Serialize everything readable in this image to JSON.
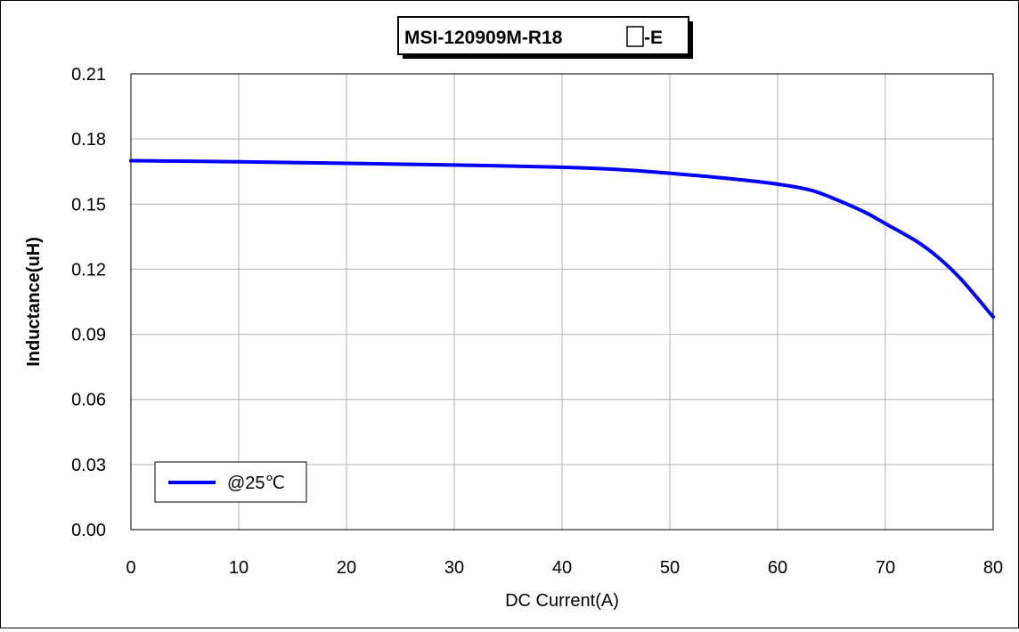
{
  "chart_data": {
    "type": "line",
    "title_prefix": "MSI-120909M-R18",
    "title_suffix": "-E",
    "xlabel": "DC Current(A)",
    "ylabel": "Inductance(uH)",
    "xlim": [
      0,
      80
    ],
    "ylim": [
      0,
      0.21
    ],
    "x_ticks": [
      "0",
      "10",
      "20",
      "30",
      "40",
      "50",
      "60",
      "70",
      "80"
    ],
    "y_ticks": [
      "0.00",
      "0.03",
      "0.06",
      "0.09",
      "0.12",
      "0.15",
      "0.18",
      "0.21"
    ],
    "grid": true,
    "legend_position": "bottom-left",
    "series": [
      {
        "name": "@25℃",
        "color": "#0000ff",
        "points": [
          [
            0,
            0.17
          ],
          [
            10,
            0.1695
          ],
          [
            20,
            0.1688
          ],
          [
            30,
            0.168
          ],
          [
            40,
            0.167
          ],
          [
            45,
            0.166
          ],
          [
            50,
            0.1642
          ],
          [
            55,
            0.162
          ],
          [
            60,
            0.1592
          ],
          [
            63,
            0.1565
          ],
          [
            65,
            0.153
          ],
          [
            68,
            0.1465
          ],
          [
            70,
            0.141
          ],
          [
            73,
            0.1325
          ],
          [
            75,
            0.125
          ],
          [
            77,
            0.1155
          ],
          [
            80,
            0.098
          ]
        ]
      }
    ]
  }
}
